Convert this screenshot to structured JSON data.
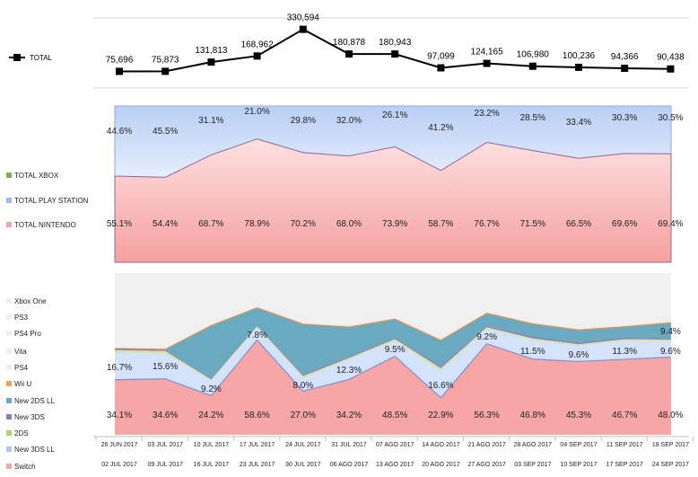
{
  "chart_data": [
    {
      "type": "line",
      "title": "",
      "legend": [
        "TOTAL"
      ],
      "categories": [
        "26 JUN 2017",
        "03 JUL 2017",
        "10 JUL 2017",
        "17 JUL 2017",
        "24 JUL 2017",
        "31 JUL 2017",
        "07 AGO 2017",
        "14 AGO 2017",
        "21 AGO 2017",
        "28 AGO 2017",
        "04 SEP 2017",
        "11 SEP 2017",
        "18 SEP 2017"
      ],
      "categories_end": [
        "02 JUL 2017",
        "09 JUL 2017",
        "16 JUL 2017",
        "23 JUL 2017",
        "30 JUL 2017",
        "06 AGO 2017",
        "13 AGO 2017",
        "20 AGO 2017",
        "27 AGO 2017",
        "03 SEP 2017",
        "10 SEP 2017",
        "17 SEP 2017",
        "24 SEP 2017"
      ],
      "values": [
        75696,
        75873,
        131813,
        168962,
        330594,
        180878,
        180943,
        97099,
        124165,
        106980,
        100236,
        94366,
        90438
      ],
      "labels": [
        "75,696",
        "75,873",
        "131,813",
        "168,962",
        "330,594",
        "180,878",
        "180,943",
        "97,099",
        "124,165",
        "106,980",
        "100,236",
        "94,366",
        "90,438"
      ],
      "ylim": [
        40000,
        345000
      ]
    },
    {
      "type": "area",
      "stacked_percent": true,
      "legend": [
        "TOTAL XBOX",
        "TOTAL PLAY STATION",
        "TOTAL NINTENDO"
      ],
      "colors": [
        "#7cb342",
        "#9fbcf2",
        "#f6a6a6"
      ],
      "series": [
        {
          "name": "TOTAL NINTENDO",
          "values": [
            55.1,
            54.4,
            68.7,
            78.9,
            70.2,
            68.0,
            73.9,
            58.7,
            76.7,
            71.5,
            66.5,
            69.6,
            69.4
          ],
          "labels": [
            "55.1%",
            "54.4%",
            "68.7%",
            "78.9%",
            "70.2%",
            "68.0%",
            "73.9%",
            "58.7%",
            "76.7%",
            "71.5%",
            "66.5%",
            "69.6%",
            "69.4%"
          ]
        },
        {
          "name": "TOTAL PLAY STATION",
          "values": [
            44.6,
            45.5,
            31.1,
            21.0,
            29.8,
            32.0,
            26.1,
            41.2,
            23.2,
            28.5,
            33.4,
            30.3,
            30.5
          ],
          "labels": [
            "44.6%",
            "45.5%",
            "31.1%",
            "21.0%",
            "29.8%",
            "32.0%",
            "26.1%",
            "41.2%",
            "23.2%",
            "28.5%",
            "33.4%",
            "30.3%",
            "30.5%"
          ]
        }
      ]
    },
    {
      "type": "area",
      "stacked_percent": true,
      "legend": [
        "Xbox One",
        "PS3",
        "PS4 Pro",
        "Vita",
        "PS4",
        "Wii U",
        "New 2DS LL",
        "New 3DS",
        "2DS",
        "New 3DS LL",
        "Switch"
      ],
      "legend_colors": [
        "#eeeeee",
        "#eeeeee",
        "#eeeeee",
        "#eeeeee",
        "#eeeeee",
        "#f5a34f",
        "#6aaac0",
        "#8b7bbf",
        "#a9d46b",
        "#aec6f2",
        "#f6a6a6"
      ],
      "series": [
        {
          "name": "Switch",
          "color": "#f6a6a6",
          "values": [
            34.1,
            34.6,
            24.2,
            58.6,
            27.0,
            34.2,
            48.5,
            22.9,
            56.3,
            46.8,
            45.3,
            46.7,
            48.0
          ],
          "labels": [
            "34.1%",
            "34.6%",
            "24.2%",
            "58.6%",
            "27.0%",
            "34.2%",
            "48.5%",
            "22.9%",
            "56.3%",
            "46.8%",
            "45.3%",
            "46.7%",
            "48.0%"
          ]
        },
        {
          "name": "New 3DS LL",
          "color": "#d4e2fb",
          "values": [
            16.7,
            15.6,
            9.2,
            7.8,
            8.0,
            12.3,
            9.5,
            16.6,
            9.2,
            11.5,
            9.6,
            11.3,
            9.6
          ],
          "labels": [
            "16.7%",
            "15.6%",
            "9.2%",
            "7.8%",
            "8.0%",
            "12.3%",
            "9.5%",
            "16.6%",
            "9.2%",
            "11.5%",
            "9.6%",
            "11.3%",
            "9.6%"
          ]
        },
        {
          "name": "2DS",
          "color": "#cfe7a4",
          "values": [
            1.5,
            1.6,
            0.8,
            0.6,
            1.3,
            1.0,
            1.2,
            1.7,
            1.0,
            1.3,
            1.1,
            1.2,
            1.2
          ]
        },
        {
          "name": "New 3DS",
          "color": "#8b7bbf",
          "values": [
            0.8,
            0.8,
            0.5,
            0.4,
            0.9,
            0.8,
            0.7,
            1.2,
            0.8,
            1.1,
            1.0,
            0.9,
            0.8
          ]
        },
        {
          "name": "New 2DS LL",
          "color": "#6aaac0",
          "values": [
            0,
            0,
            32.6,
            10.9,
            31.0,
            18.1,
            11.4,
            15.8,
            7.6,
            7.7,
            7.6,
            6.5,
            9.4
          ],
          "labels": [
            "",
            "",
            "",
            "",
            "",
            "",
            "",
            "",
            "",
            "",
            "",
            "",
            "9.4%"
          ]
        },
        {
          "name": "Wii U",
          "color": "#f5a34f",
          "values": [
            0.3,
            0.3,
            0.3,
            0.3,
            0.3,
            0.3,
            0.3,
            0.3,
            0.3,
            0.3,
            0.3,
            0.3,
            0.3
          ]
        }
      ]
    }
  ]
}
